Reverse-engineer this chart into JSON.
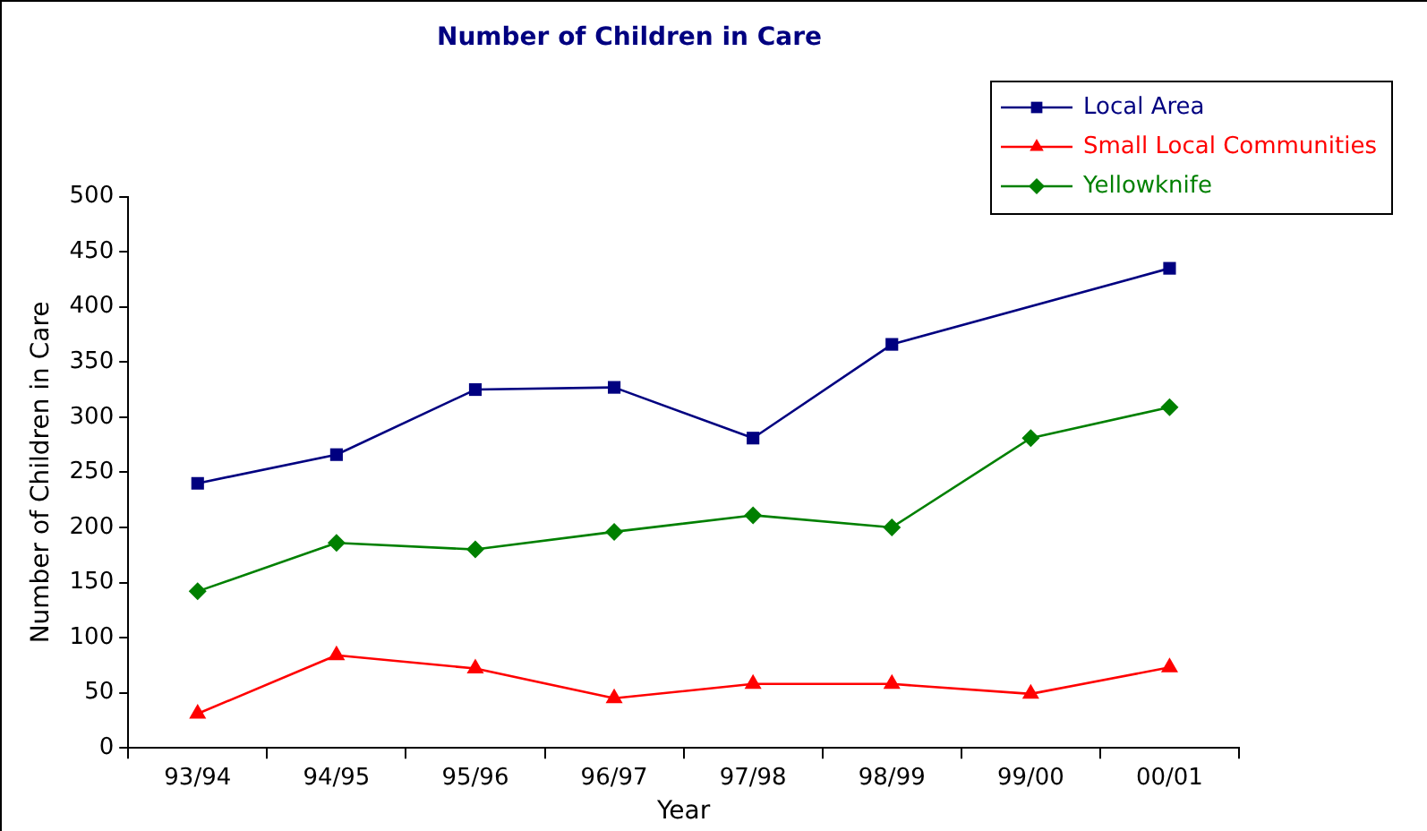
{
  "chart_data": {
    "type": "line",
    "title": "Number of Children in Care",
    "xlabel": "Year",
    "ylabel": "Number of Children in Care",
    "categories": [
      "93/94",
      "94/95",
      "95/96",
      "96/97",
      "97/98",
      "98/99",
      "99/00",
      "00/01"
    ],
    "series": [
      {
        "name": "Local Area",
        "color": "#000080",
        "marker": "square",
        "values": [
          240,
          266,
          325,
          327,
          281,
          366,
          null,
          435
        ]
      },
      {
        "name": "Small Local Communities",
        "color": "#ff0000",
        "marker": "triangle",
        "values": [
          31,
          84,
          72,
          45,
          58,
          58,
          49,
          73
        ]
      },
      {
        "name": "Yellowknife",
        "color": "#008000",
        "marker": "diamond",
        "values": [
          142,
          186,
          180,
          196,
          211,
          200,
          281,
          309
        ]
      }
    ],
    "ylim": [
      0,
      500
    ],
    "yticks": [
      0,
      50,
      100,
      150,
      200,
      250,
      300,
      350,
      400,
      450,
      500
    ],
    "grid": false,
    "legend": "top right",
    "line_style": "solid"
  }
}
